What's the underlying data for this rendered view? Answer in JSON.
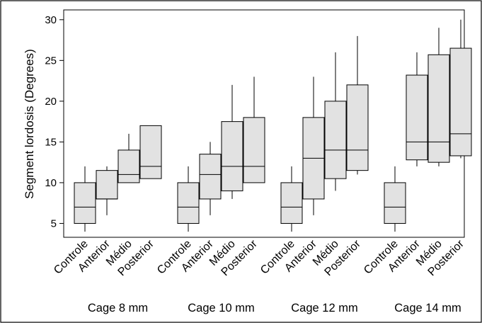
{
  "chart_data": {
    "type": "boxplot",
    "ylabel": "Segment lordosis (Degrees)",
    "y_ticks": [
      5,
      10,
      15,
      20,
      25,
      30
    ],
    "ylim": [
      3.3,
      31.2
    ],
    "groups": [
      {
        "name": "Cage 8 mm",
        "boxes": [
          {
            "category": "Controle",
            "min": 4,
            "q1": 5,
            "median": 7,
            "q3": 10,
            "max": 12
          },
          {
            "category": "Anterior",
            "min": 6,
            "q1": 8,
            "median": 8,
            "q3": 11.5,
            "max": 12
          },
          {
            "category": "Médio",
            "min": 10,
            "q1": 10,
            "median": 11,
            "q3": 14,
            "max": 16
          },
          {
            "category": "Posterior",
            "min": 10.5,
            "q1": 10.5,
            "median": 12,
            "q3": 17,
            "max": 17
          }
        ]
      },
      {
        "name": "Cage 10 mm",
        "boxes": [
          {
            "category": "Controle",
            "min": 4,
            "q1": 5,
            "median": 7,
            "q3": 10,
            "max": 12
          },
          {
            "category": "Anterior",
            "min": 6,
            "q1": 8,
            "median": 11,
            "q3": 13.5,
            "max": 15
          },
          {
            "category": "Médio",
            "min": 8,
            "q1": 9,
            "median": 12,
            "q3": 17.5,
            "max": 22
          },
          {
            "category": "Posterior",
            "min": 10,
            "q1": 10,
            "median": 12,
            "q3": 18,
            "max": 23
          }
        ]
      },
      {
        "name": "Cage 12 mm",
        "boxes": [
          {
            "category": "Controle",
            "min": 4,
            "q1": 5,
            "median": 7,
            "q3": 10,
            "max": 12
          },
          {
            "category": "Anterior",
            "min": 6,
            "q1": 8,
            "median": 13,
            "q3": 18,
            "max": 23
          },
          {
            "category": "Médio",
            "min": 9,
            "q1": 10.5,
            "median": 14,
            "q3": 20,
            "max": 26
          },
          {
            "category": "Posterior",
            "min": 11,
            "q1": 11.5,
            "median": 14,
            "q3": 22,
            "max": 28
          }
        ]
      },
      {
        "name": "Cage 14 mm",
        "boxes": [
          {
            "category": "Controle",
            "min": 4,
            "q1": 5,
            "median": 7,
            "q3": 10,
            "max": 12
          },
          {
            "category": "Anterior",
            "min": 12,
            "q1": 12.8,
            "median": 15,
            "q3": 23.2,
            "max": 26
          },
          {
            "category": "Médio",
            "min": 12,
            "q1": 12.5,
            "median": 15,
            "q3": 25.7,
            "max": 29
          },
          {
            "category": "Posterior",
            "min": 13,
            "q1": 13.3,
            "median": 16,
            "q3": 26.5,
            "max": 30
          }
        ]
      }
    ]
  }
}
